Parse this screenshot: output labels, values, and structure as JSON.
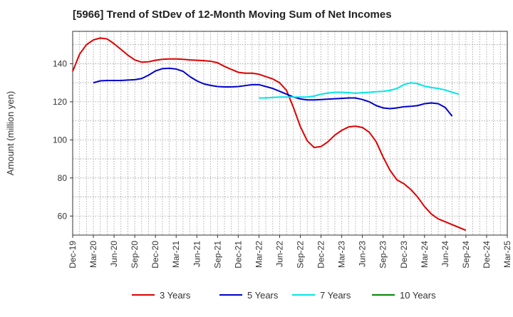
{
  "chart_data": {
    "type": "line",
    "title": "[5966]  Trend of StDev of 12-Month Moving Sum of Net Incomes",
    "xlabel": "",
    "ylabel": "Amount (million yen)",
    "ylim": [
      50,
      157
    ],
    "yticks": [
      60,
      80,
      100,
      120,
      140
    ],
    "xticks": [
      "Dec-19",
      "Mar-20",
      "Jun-20",
      "Sep-20",
      "Dec-20",
      "Mar-21",
      "Jun-21",
      "Sep-21",
      "Dec-21",
      "Mar-22",
      "Jun-22",
      "Sep-22",
      "Dec-22",
      "Mar-23",
      "Jun-23",
      "Sep-23",
      "Dec-23",
      "Mar-24",
      "Jun-24",
      "Sep-24",
      "Dec-24",
      "Mar-25"
    ],
    "grid": true,
    "legend_position": "bottom",
    "series": [
      {
        "name": "3 Years",
        "color": "#dd0000",
        "start_index": 0,
        "values": [
          136,
          145,
          150,
          152.5,
          153.5,
          153,
          150.5,
          147.5,
          144.5,
          142,
          140.8,
          141,
          141.8,
          142.3,
          142.5,
          142.5,
          142.3,
          142,
          141.8,
          141.6,
          141.3,
          140.5,
          138.6,
          137,
          135.5,
          135,
          135,
          134.5,
          133.2,
          132,
          130,
          126,
          117,
          107,
          99.5,
          96,
          96.5,
          99,
          102.5,
          105,
          106.8,
          107.2,
          106.5,
          104,
          99,
          91,
          84,
          79,
          77,
          74,
          70,
          65,
          61,
          58.5,
          57,
          55.5,
          54,
          52.5
        ]
      },
      {
        "name": "5 Years",
        "color": "#0000cc",
        "start_index": 3,
        "values": [
          130,
          131,
          131.2,
          131.2,
          131.2,
          131.4,
          131.6,
          132.2,
          134,
          136.2,
          137.4,
          137.6,
          137.2,
          136,
          133.2,
          131,
          129.4,
          128.6,
          128,
          127.8,
          127.8,
          128,
          128.5,
          129,
          129,
          128,
          127,
          125.5,
          124,
          122.5,
          121.5,
          121,
          121,
          121.2,
          121.4,
          121.6,
          121.8,
          122,
          122,
          121.2,
          120,
          118,
          116.8,
          116.4,
          116.8,
          117.4,
          117.6,
          118,
          119,
          119.4,
          119,
          117,
          112.5
        ]
      },
      {
        "name": "7 Years",
        "color": "#00e5e5",
        "start_index": 27,
        "values": [
          122,
          122,
          122.3,
          122.5,
          122.5,
          122.5,
          122.5,
          122.5,
          123,
          124,
          124.6,
          125,
          125,
          124.8,
          124.5,
          124.8,
          125,
          125.3,
          125.5,
          126,
          127,
          129,
          130,
          129.5,
          128.2,
          127.5,
          127,
          126.2,
          125,
          124
        ]
      },
      {
        "name": "10 Years",
        "color": "#008800",
        "start_index": 0,
        "values": []
      }
    ]
  }
}
